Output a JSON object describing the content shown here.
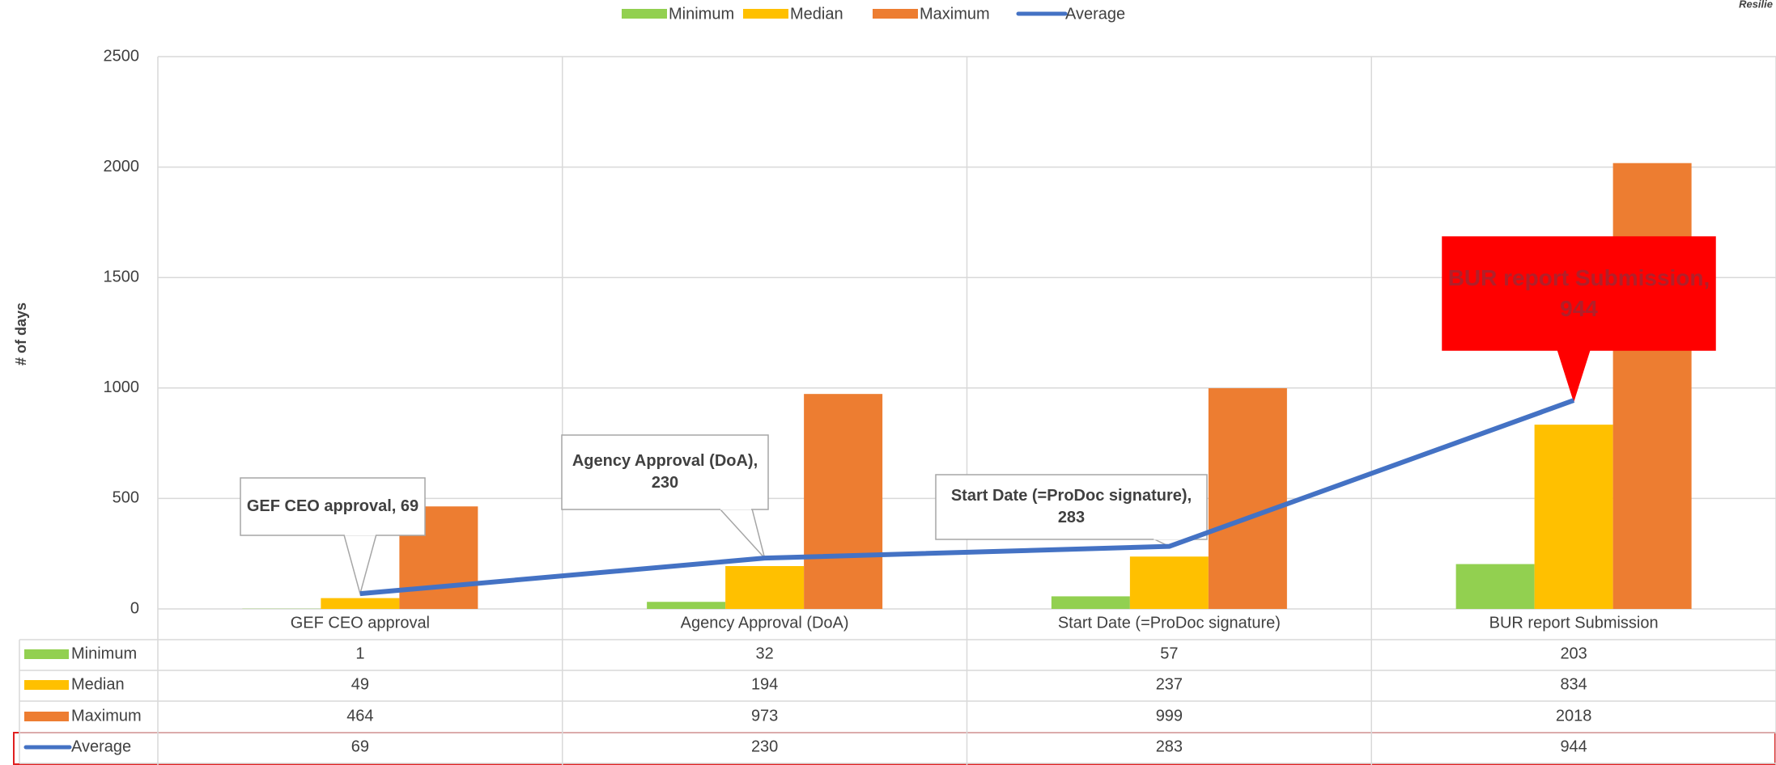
{
  "chart_data": {
    "type": "bar",
    "corner_note": "Resilie",
    "y_label": "# of days",
    "categories": [
      "GEF CEO approval",
      "Agency Approval (DoA)",
      "Start Date (=ProDoc signature)",
      "BUR report Submission"
    ],
    "series": [
      {
        "name": "Minimum",
        "color": "#92d050",
        "values": [
          1,
          32,
          57,
          203
        ]
      },
      {
        "name": "Median",
        "color": "#ffc000",
        "values": [
          49,
          194,
          237,
          834
        ]
      },
      {
        "name": "Maximum",
        "color": "#ed7d31",
        "values": [
          464,
          973,
          999,
          2018
        ]
      },
      {
        "name": "Average",
        "type": "line",
        "color": "#4472c4",
        "values": [
          69,
          230,
          283,
          944
        ],
        "value_labels": [
          "GEF CEO approval, 69",
          "Agency Approval (DoA), 230",
          "Start Date (=ProDoc signature), 283",
          "BUR report Submission, 944"
        ]
      }
    ],
    "ylim": [
      0,
      2500
    ],
    "yticks": [
      0,
      500,
      1000,
      1500,
      2000,
      2500
    ],
    "grid": true,
    "legend": "top",
    "data_table": true
  }
}
